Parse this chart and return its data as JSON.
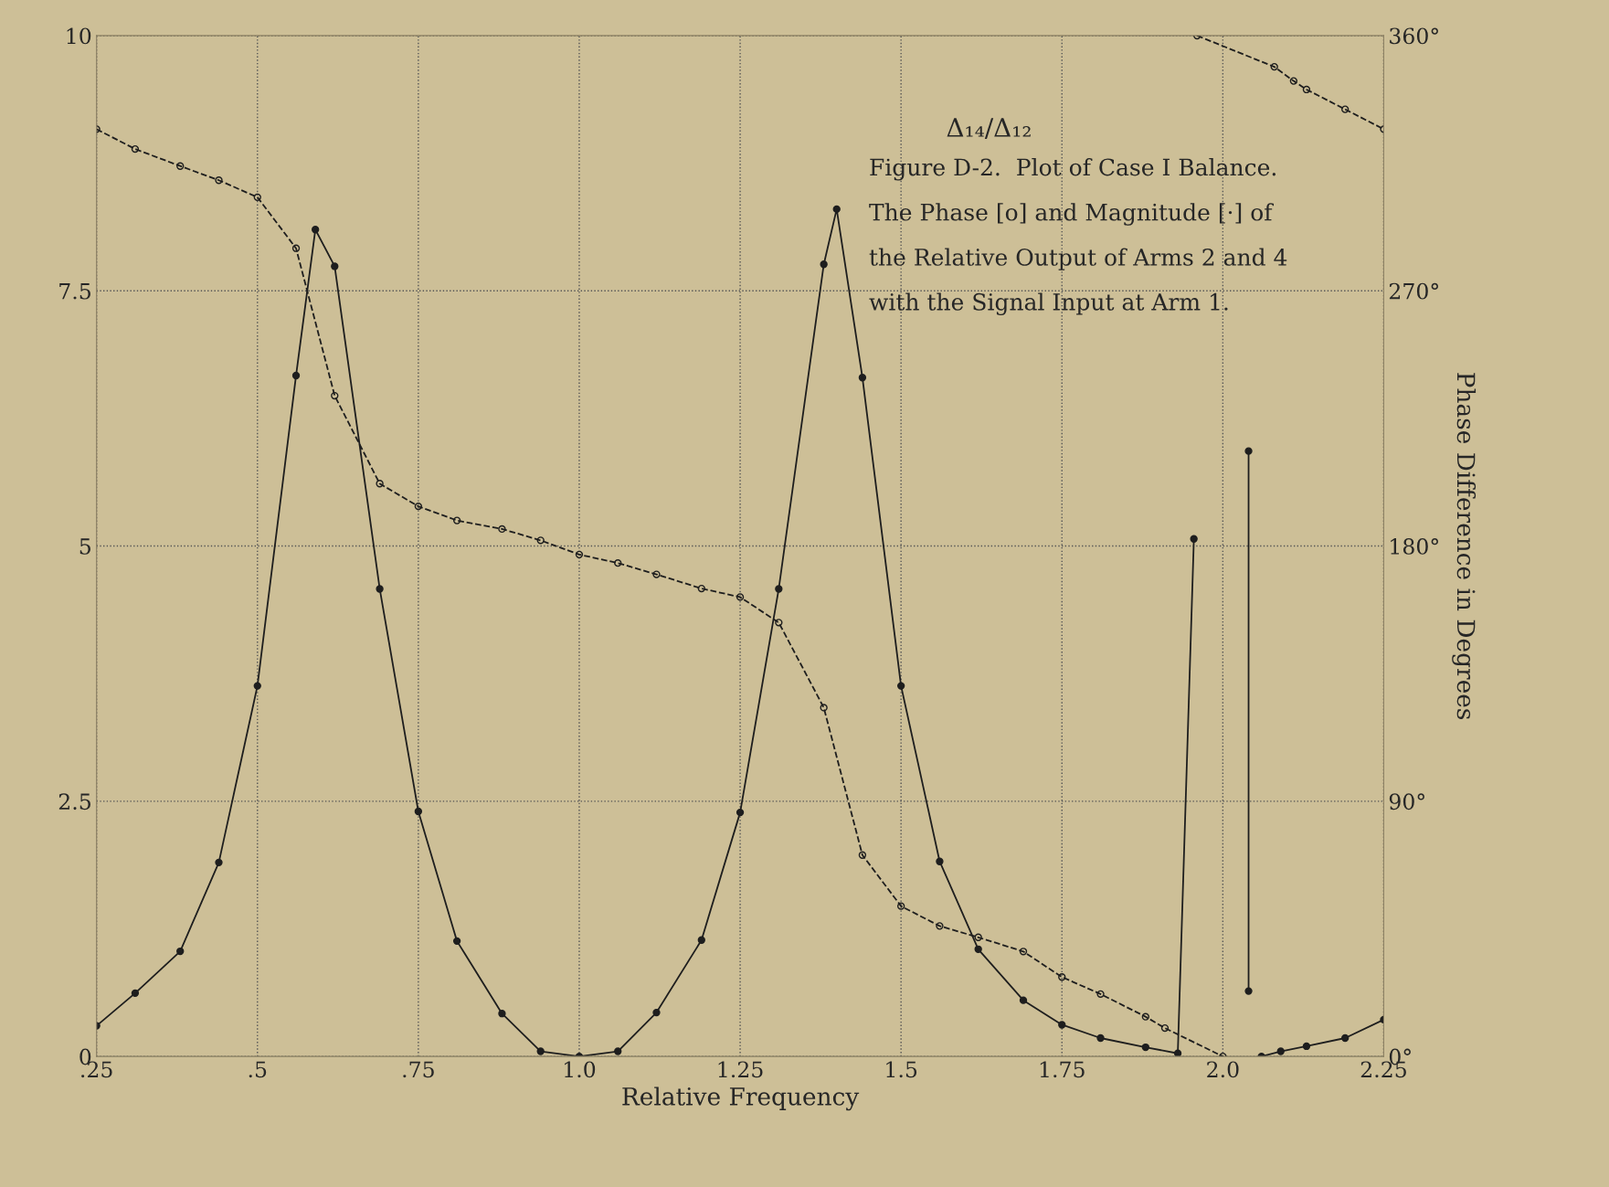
{
  "chart_data": {
    "type": "line",
    "xlabel": "Relative Frequency",
    "y2label": "Phase Difference in Degrees",
    "xlim": [
      0.25,
      2.25
    ],
    "xticks": [
      {
        "value": 0.25,
        "label": ".25"
      },
      {
        "value": 0.5,
        "label": ".5"
      },
      {
        "value": 0.75,
        "label": ".75"
      },
      {
        "value": 1.0,
        "label": "1.0"
      },
      {
        "value": 1.25,
        "label": "1.25"
      },
      {
        "value": 1.5,
        "label": "1.5"
      },
      {
        "value": 1.75,
        "label": "1.75"
      },
      {
        "value": 2.0,
        "label": "2.0"
      },
      {
        "value": 2.25,
        "label": "2.25"
      }
    ],
    "ylim": [
      0,
      10
    ],
    "yticks": [
      0,
      2.5,
      5,
      7.5,
      10
    ],
    "y2lim": [
      0,
      360
    ],
    "y2ticks": [
      {
        "value": 0,
        "label": "0°"
      },
      {
        "value": 90,
        "label": "90°"
      },
      {
        "value": 180,
        "label": "180°"
      },
      {
        "value": 270,
        "label": "270°"
      },
      {
        "value": 360,
        "label": "360°"
      }
    ],
    "grid": "dotted",
    "series": [
      {
        "color": "#1e1e1e",
        "marker": "circle",
        "line_style": "solid",
        "x": [
          0.25,
          0.31,
          0.38,
          0.44,
          0.5,
          0.56,
          0.59,
          0.62,
          0.69,
          0.75,
          0.81,
          0.88,
          0.94,
          1.0,
          1.06,
          1.12,
          1.19,
          1.25,
          1.31,
          1.38,
          1.4,
          1.44,
          1.5,
          1.56,
          1.62,
          1.69,
          1.75,
          1.81,
          1.88,
          1.93,
          1.955,
          null,
          2.04,
          2.04,
          null,
          2.06,
          2.09,
          2.13,
          2.19,
          2.25
        ],
        "values": [
          0.3,
          0.62,
          1.03,
          1.9,
          3.63,
          6.67,
          8.1,
          7.74,
          4.58,
          2.4,
          1.13,
          0.42,
          0.05,
          0,
          0.05,
          0.43,
          1.14,
          2.39,
          4.58,
          7.76,
          8.3,
          6.65,
          3.63,
          1.91,
          1.05,
          0.55,
          0.31,
          0.18,
          0.09,
          0.03,
          5.07,
          null,
          5.93,
          0.64,
          null,
          0,
          0.05,
          0.1,
          0.18,
          0.36
        ]
      },
      {
        "color": "#1e1e1e",
        "marker": "circle",
        "line_style": "dashed",
        "axis": "y2",
        "x": [
          0.25,
          0.31,
          0.38,
          0.44,
          0.5,
          0.56,
          0.62,
          0.69,
          0.75,
          0.81,
          0.88,
          0.94,
          1.0,
          1.06,
          1.12,
          1.19,
          1.25,
          1.31,
          1.38,
          1.44,
          1.5,
          1.56,
          1.62,
          1.69,
          1.75,
          1.81,
          1.88,
          1.91,
          2.0,
          null,
          1.96,
          2.08,
          2.11,
          2.13,
          2.19,
          2.25
        ],
        "values": [
          327,
          320,
          314,
          309,
          303,
          285,
          233,
          202,
          194,
          189,
          186,
          182,
          177,
          174,
          170,
          165,
          162,
          153,
          123,
          71,
          53,
          46,
          42,
          37,
          28,
          22,
          14,
          10,
          0,
          null,
          360,
          349,
          344,
          341,
          334,
          327
        ]
      }
    ],
    "annotations": [
      {
        "text": "Δ₁₄/Δ₁₂"
      },
      {
        "text": "Figure D-2.  Plot of Case I Balance.\nThe Phase [o] and Magnitude [·] of\nthe Relative Output of Arms 2 and 4\nwith the Signal Input at Arm 1."
      }
    ]
  }
}
